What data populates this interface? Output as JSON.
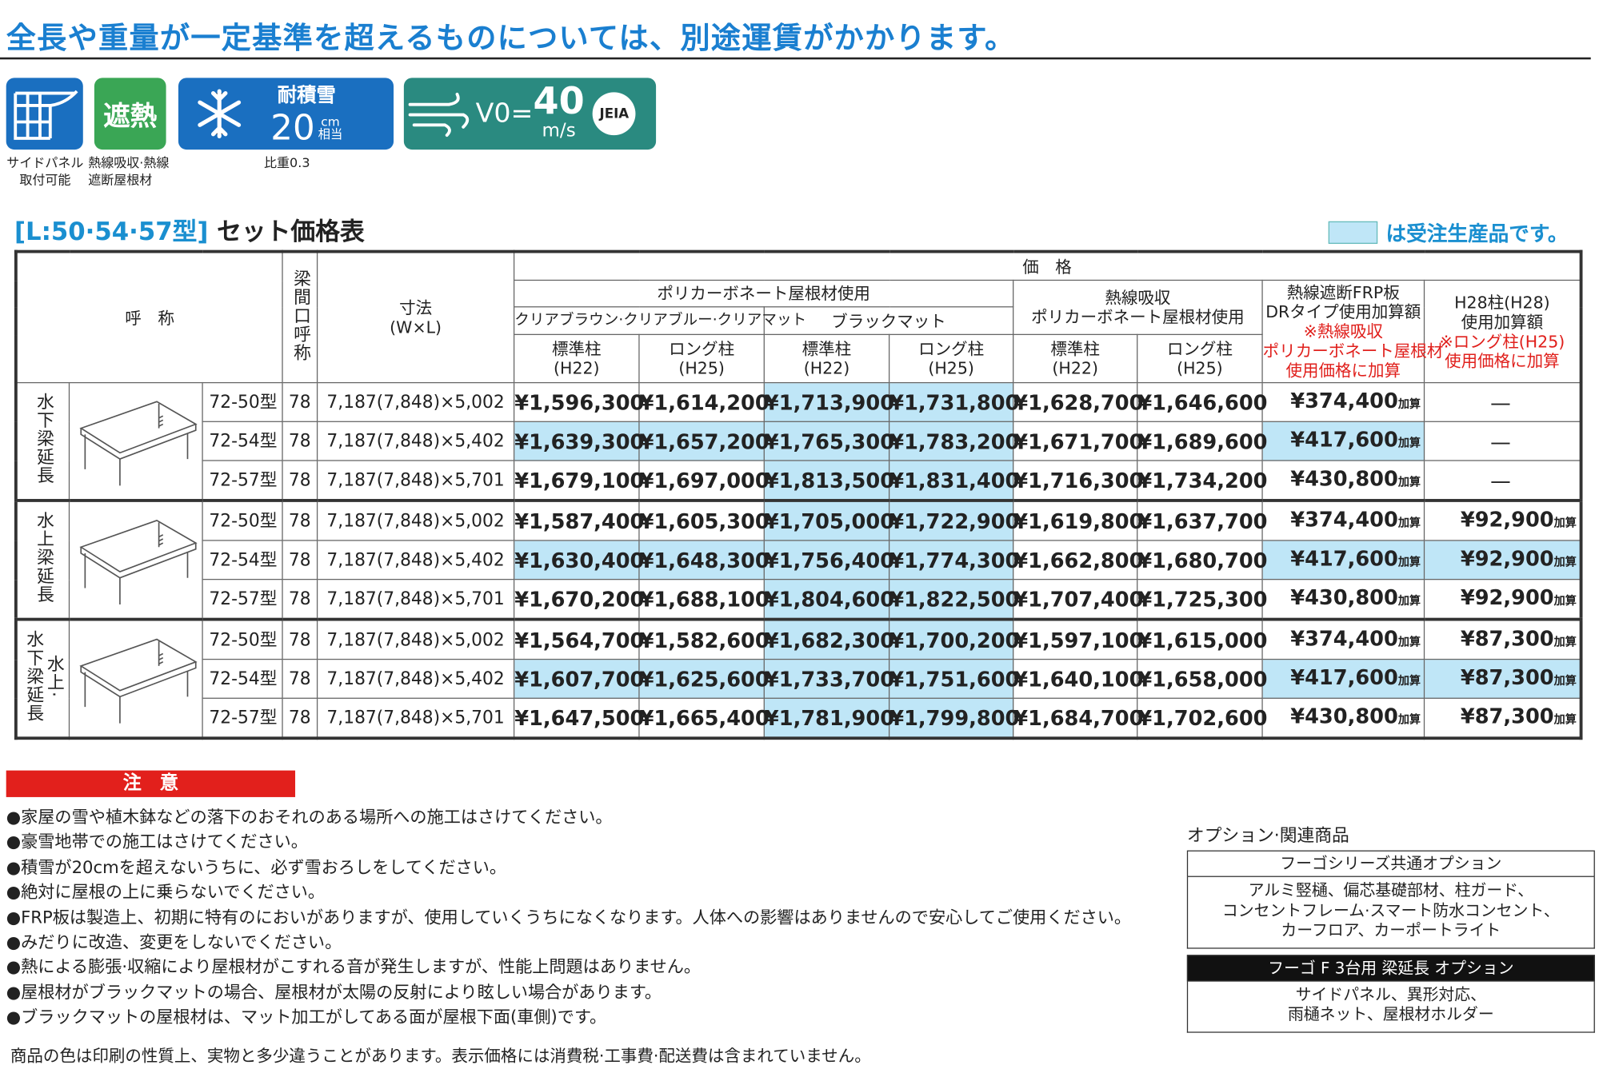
{
  "header": {
    "title": "全長や重量が一定基準を超えるものについては、別途運賃がかかります。"
  },
  "badges": {
    "side_panel": {
      "caption": [
        "サイドパネル",
        "取付可能"
      ]
    },
    "heat": {
      "label": "遮熱",
      "caption": [
        "熱線吸収·熱線",
        "遮断屋根材"
      ]
    },
    "snow": {
      "label": "耐積雪",
      "value": "20",
      "unit": "cm",
      "unit_note": "相当",
      "caption": "比重0.3"
    },
    "wind": {
      "prefix": "V0=",
      "value": "40",
      "unit": "m/s",
      "mark": "JEIA"
    }
  },
  "table": {
    "model_code": "[L:50·54·57型]",
    "title": "セット価格表",
    "legend": "は受注生産品です。",
    "headers": {
      "name": "呼　称",
      "span": "梁間口呼称",
      "size": [
        "寸法",
        "(W×L)"
      ],
      "price": "価　格",
      "polycarbonate": "ポリカーボネート屋根材使用",
      "clear": "クリアブラウン·クリアブルー·クリアマット",
      "black": "ブラックマット",
      "heat_absorb": [
        "熱線吸収",
        "ポリカーボネート屋根材使用"
      ],
      "frp": {
        "lines": [
          "熱線遮断FRP板",
          "DRタイプ使用加算額"
        ],
        "note": [
          "※熱線吸収",
          "ポリカーボネート屋根材",
          "使用価格に加算"
        ]
      },
      "h28": {
        "lines": [
          "H28柱(H28)",
          "使用加算額"
        ],
        "note": [
          "※ロング柱(H25)",
          "使用価格に加算"
        ]
      },
      "standard": [
        "標準柱",
        "(H22)"
      ],
      "long": [
        "ロング柱",
        "(H25)"
      ]
    },
    "addon_suffix": "加算",
    "groups": [
      {
        "label": [
          "水下梁延長"
        ],
        "rows": [
          {
            "model": "72-50型",
            "span": "78",
            "size": "7,187(7,848)×5,002",
            "prices": [
              "¥1,596,300",
              "¥1,614,200",
              "¥1,713,900",
              "¥1,731,800",
              "¥1,628,700",
              "¥1,646,600"
            ],
            "frp": "¥374,400",
            "h28": "—"
          },
          {
            "model": "72-54型",
            "span": "78",
            "size": "7,187(7,848)×5,402",
            "prices": [
              "¥1,639,300",
              "¥1,657,200",
              "¥1,765,300",
              "¥1,783,200",
              "¥1,671,700",
              "¥1,689,600"
            ],
            "frp": "¥417,600",
            "h28": "—"
          },
          {
            "model": "72-57型",
            "span": "78",
            "size": "7,187(7,848)×5,701",
            "prices": [
              "¥1,679,100",
              "¥1,697,000",
              "¥1,813,500",
              "¥1,831,400",
              "¥1,716,300",
              "¥1,734,200"
            ],
            "frp": "¥430,800",
            "h28": "—"
          }
        ]
      },
      {
        "label": [
          "水上梁延長"
        ],
        "rows": [
          {
            "model": "72-50型",
            "span": "78",
            "size": "7,187(7,848)×5,002",
            "prices": [
              "¥1,587,400",
              "¥1,605,300",
              "¥1,705,000",
              "¥1,722,900",
              "¥1,619,800",
              "¥1,637,700"
            ],
            "frp": "¥374,400",
            "h28": "¥92,900"
          },
          {
            "model": "72-54型",
            "span": "78",
            "size": "7,187(7,848)×5,402",
            "prices": [
              "¥1,630,400",
              "¥1,648,300",
              "¥1,756,400",
              "¥1,774,300",
              "¥1,662,800",
              "¥1,680,700"
            ],
            "frp": "¥417,600",
            "h28": "¥92,900"
          },
          {
            "model": "72-57型",
            "span": "78",
            "size": "7,187(7,848)×5,701",
            "prices": [
              "¥1,670,200",
              "¥1,688,100",
              "¥1,804,600",
              "¥1,822,500",
              "¥1,707,400",
              "¥1,725,300"
            ],
            "frp": "¥430,800",
            "h28": "¥92,900"
          }
        ]
      },
      {
        "label": [
          "水上·",
          "水下梁延長"
        ],
        "rows": [
          {
            "model": "72-50型",
            "span": "78",
            "size": "7,187(7,848)×5,002",
            "prices": [
              "¥1,564,700",
              "¥1,582,600",
              "¥1,682,300",
              "¥1,700,200",
              "¥1,597,100",
              "¥1,615,000"
            ],
            "frp": "¥374,400",
            "h28": "¥87,300"
          },
          {
            "model": "72-54型",
            "span": "78",
            "size": "7,187(7,848)×5,402",
            "prices": [
              "¥1,607,700",
              "¥1,625,600",
              "¥1,733,700",
              "¥1,751,600",
              "¥1,640,100",
              "¥1,658,000"
            ],
            "frp": "¥417,600",
            "h28": "¥87,300"
          },
          {
            "model": "72-57型",
            "span": "78",
            "size": "7,187(7,848)×5,701",
            "prices": [
              "¥1,647,500",
              "¥1,665,400",
              "¥1,781,900",
              "¥1,799,800",
              "¥1,684,700",
              "¥1,702,600"
            ],
            "frp": "¥430,800",
            "h28": "¥87,300"
          }
        ]
      }
    ]
  },
  "notes": {
    "title": "注　意",
    "items": [
      "●家屋の雪や植木鉢などの落下のおそれのある場所への施工はさけてください。",
      "●豪雪地帯での施工はさけてください。",
      "●積雪が20cmを超えないうちに、必ず雪おろしをしてください。",
      "●絶対に屋根の上に乗らないでください。",
      "●FRP板は製造上、初期に特有のにおいがありますが、使用していくうちになくなります。人体への影響はありませんので安心してご使用ください。",
      "●みだりに改造、変更をしないでください。",
      "●熱による膨張·収縮により屋根材がこすれる音が発生しますが、性能上問題はありません。",
      "●屋根材がブラックマットの場合、屋根材が太陽の反射により眩しい場合があります。",
      "●ブラックマットの屋根材は、マット加工がしてある面が屋根下面(車側)です。"
    ],
    "footer": "商品の色は印刷の性質上、実物と多少違うことがあります。表示価格には消費税·工事費·配送費は含まれていません。"
  },
  "options": {
    "title": "オプション·関連商品",
    "sections": [
      {
        "heading": "フーゴシリーズ共通オプション",
        "body": [
          "アルミ竪樋、偏芯基礎部材、柱ガード、",
          "コンセントフレーム·スマート防水コンセント、",
          "カーフロア、カーポートライト"
        ]
      },
      {
        "heading": "フーゴ F 3台用 梁延長 オプション",
        "body": [
          "サイドパネル、異形対応、",
          "雨樋ネット、屋根材ホルダー"
        ]
      }
    ]
  }
}
